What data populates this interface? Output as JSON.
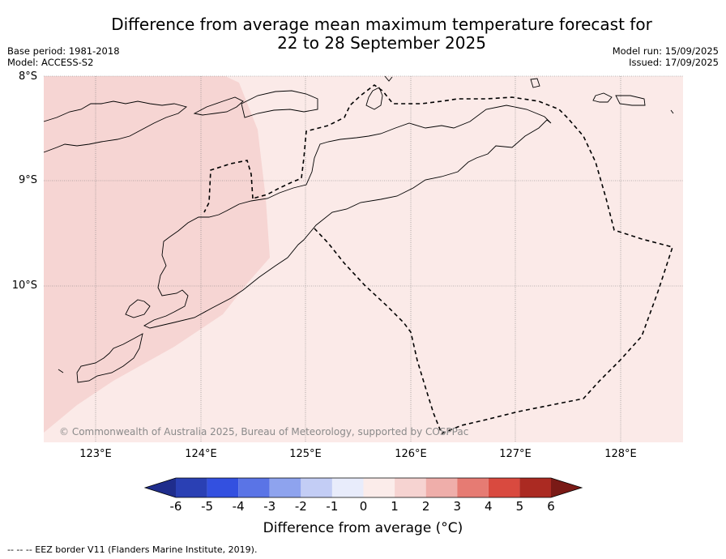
{
  "title_line1": "Difference from average mean maximum temperature forecast for",
  "title_line2": "22 to 28 September 2025",
  "meta_left": [
    "Base period: 1981-2018",
    "Model: ACCESS-S2"
  ],
  "meta_right": [
    "Model run: 15/09/2025",
    "Issued: 17/09/2025"
  ],
  "latitudes": [
    "8°S",
    "9°S",
    "10°S"
  ],
  "longitudes": [
    "123°E",
    "124°E",
    "125°E",
    "126°E",
    "127°E",
    "128°E"
  ],
  "copyright": "© Commonwealth of Australia 2025, Bureau of Meteorology, supported by COSPPac",
  "colorbar": {
    "ticks": [
      "-6",
      "-5",
      "-4",
      "-3",
      "-2",
      "-1",
      "0",
      "1",
      "2",
      "3",
      "4",
      "5",
      "6"
    ],
    "colors": [
      "#1f2d8c",
      "#2a40b4",
      "#3350e0",
      "#5a74e6",
      "#8ea3ee",
      "#c3cdf5",
      "#e8ecfb",
      "#fbecea",
      "#f6d3d1",
      "#efaeaa",
      "#e67b73",
      "#d94a3f",
      "#ab2a22",
      "#7a1a16"
    ],
    "label": "Difference from average (°C)"
  },
  "map_colors": {
    "bin_0_1": "#fbeae8",
    "bin_1_2": "#f6d5d3"
  },
  "footnote": "-- -- -- EEZ border V11 (Flanders Marine Institute, 2019)."
}
